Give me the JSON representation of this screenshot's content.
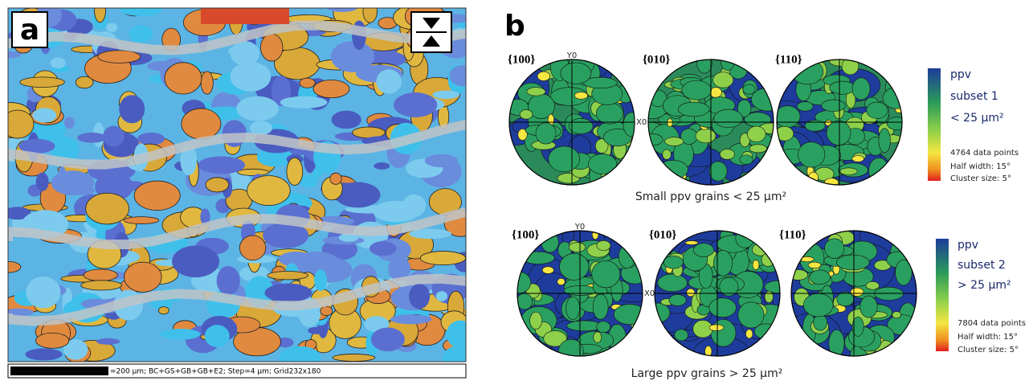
{
  "panel_a": {
    "label": "a",
    "scale_bar": "=200 µm; BC+GS+GB+GB+E2; Step=4 µm; Grid232x180"
  },
  "panel_b": {
    "label": "b",
    "rows": [
      {
        "pole_figures": [
          {
            "label": "{100}",
            "axis_top": "Y0",
            "axis_side": "X0"
          },
          {
            "label": "{010}"
          },
          {
            "label": "{110}"
          }
        ],
        "legend": {
          "title": [
            "ppv",
            "subset 1",
            "< 25 µm²"
          ],
          "data_points": "4764 data points",
          "half_width": "Half width: 15°",
          "cluster_size": "Cluster size: 5°"
        },
        "caption": "Small ppv grains < 25 µm²"
      },
      {
        "pole_figures": [
          {
            "label": "{100}",
            "axis_top": "Y0",
            "axis_side": "X0"
          },
          {
            "label": "{010}"
          },
          {
            "label": "{110}"
          }
        ],
        "legend": {
          "title": [
            "ppv",
            "subset 2",
            "> 25 µm²"
          ],
          "data_points": "7804 data points",
          "half_width": "Half width: 15°",
          "cluster_size": "Cluster size: 5°"
        },
        "caption": "Large ppv grains > 25 µm²"
      }
    ]
  }
}
